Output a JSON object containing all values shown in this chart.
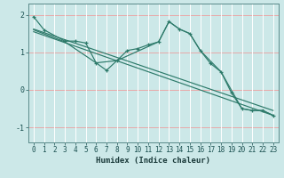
{
  "xlabel": "Humidex (Indice chaleur)",
  "bg_color": "#cce8e8",
  "vgrid_color": "#ffffff",
  "hgrid_color": "#e8aaaa",
  "line_color": "#2d7a6a",
  "xlim": [
    -0.5,
    23.5
  ],
  "ylim": [
    -1.4,
    2.3
  ],
  "xticks": [
    0,
    1,
    2,
    3,
    4,
    5,
    6,
    7,
    8,
    9,
    10,
    11,
    12,
    13,
    14,
    15,
    16,
    17,
    18,
    19,
    20,
    21,
    22,
    23
  ],
  "yticks": [
    -1,
    0,
    1,
    2
  ],
  "line1_x": [
    0,
    1,
    3,
    4,
    5,
    6,
    7,
    8,
    9,
    10,
    11,
    12,
    13,
    14,
    15,
    16,
    17,
    18,
    19,
    20,
    21,
    22,
    23
  ],
  "line1_y": [
    1.95,
    1.6,
    1.3,
    1.3,
    1.25,
    0.72,
    0.52,
    0.78,
    1.05,
    1.1,
    1.2,
    1.28,
    1.82,
    1.62,
    1.5,
    1.05,
    0.7,
    0.48,
    -0.08,
    -0.5,
    -0.55,
    -0.55,
    -0.68
  ],
  "line2_x": [
    0,
    3,
    6,
    8,
    12,
    13,
    14,
    15,
    16,
    18,
    20,
    21,
    22,
    23
  ],
  "line2_y": [
    1.6,
    1.28,
    0.72,
    0.78,
    1.28,
    1.82,
    1.62,
    1.5,
    1.05,
    0.48,
    -0.5,
    -0.55,
    -0.55,
    -0.68
  ],
  "line3_x": [
    0,
    23
  ],
  "line3_y": [
    1.62,
    -0.55
  ],
  "line4_x": [
    0,
    23
  ],
  "line4_y": [
    1.55,
    -0.68
  ]
}
